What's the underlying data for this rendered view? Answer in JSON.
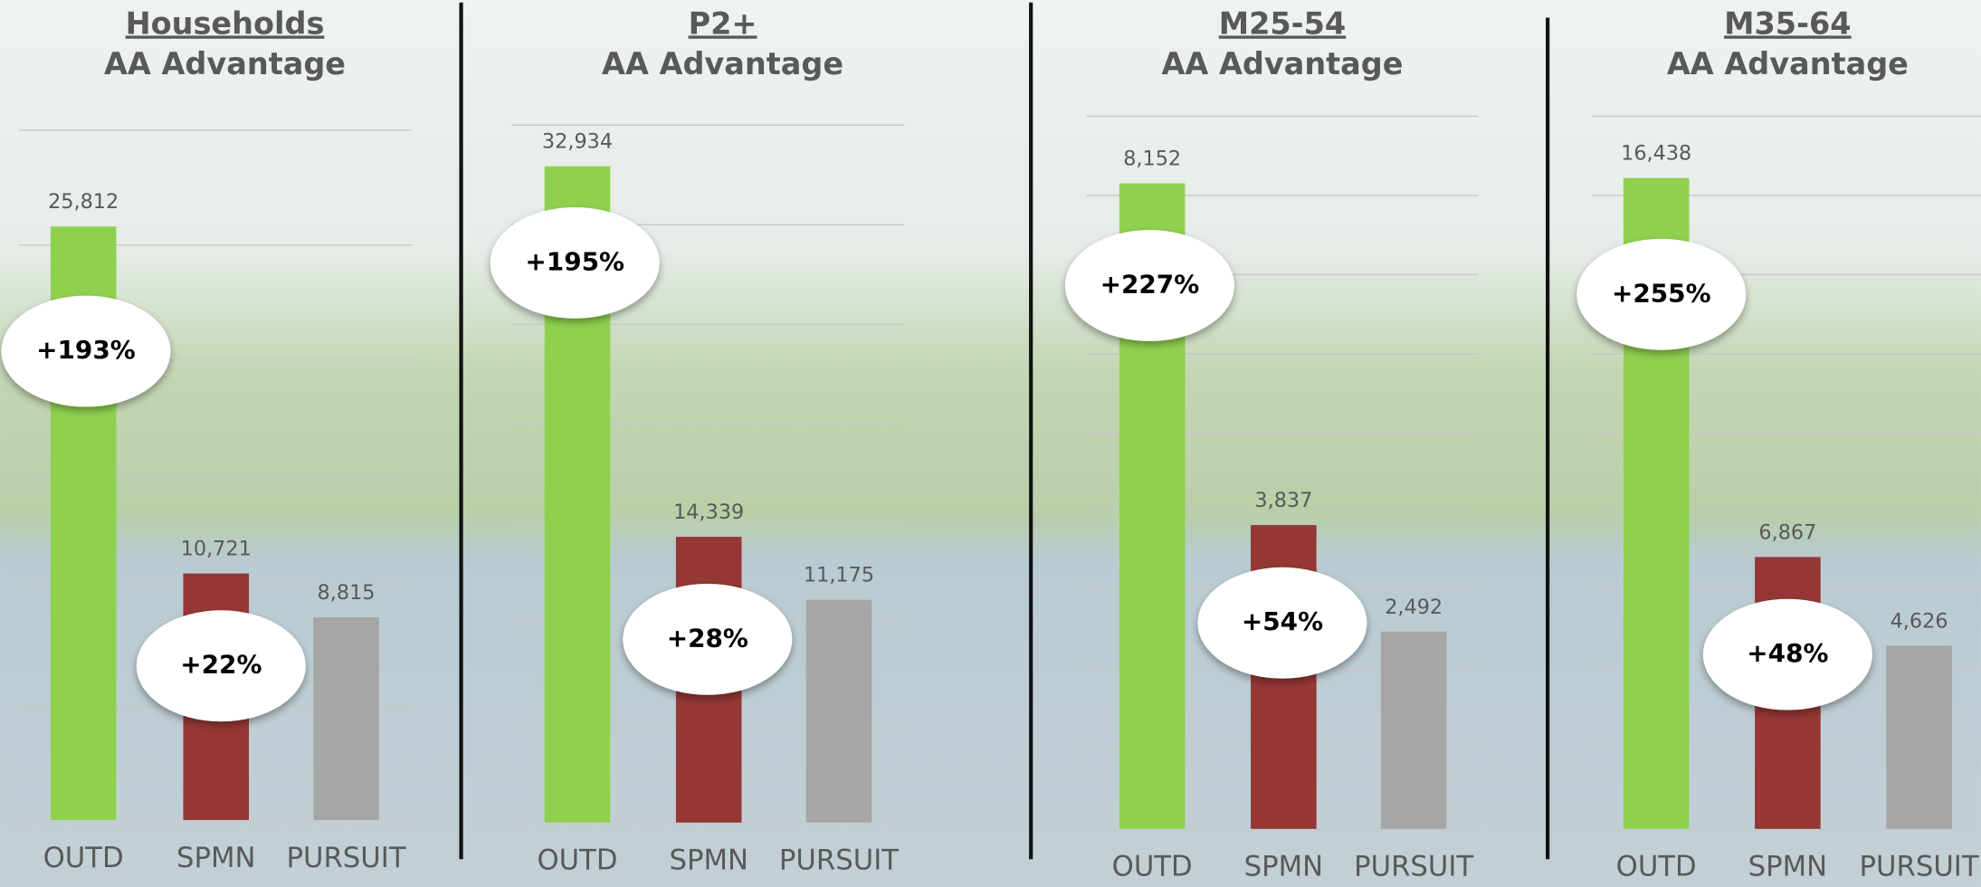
{
  "chart_data": [
    {
      "type": "bar",
      "title": "Households",
      "subtitle": "AA Advantage",
      "categories": [
        "OUTD",
        "SPMN",
        "PURSUIT"
      ],
      "values": [
        25812,
        10721,
        8815
      ],
      "value_labels": [
        "25,812",
        "10,721",
        "8,815"
      ],
      "colors": [
        "#8fd14f",
        "#953735",
        "#a6a6a6"
      ],
      "annotations": [
        "+193%",
        "+22%"
      ],
      "ylim": [
        0,
        30000
      ],
      "yticks": [
        0,
        5000,
        10000,
        15000,
        20000,
        25000,
        30000
      ],
      "grid": true
    },
    {
      "type": "bar",
      "title": "P2+",
      "subtitle": "AA Advantage",
      "categories": [
        "OUTD",
        "SPMN",
        "PURSUIT"
      ],
      "values": [
        32934,
        14339,
        11175
      ],
      "value_labels": [
        "32,934",
        "14,339",
        "11,175"
      ],
      "colors": [
        "#8fd14f",
        "#953735",
        "#a6a6a6"
      ],
      "annotations": [
        "+195%",
        "+28%"
      ],
      "ylim": [
        0,
        35000
      ],
      "yticks": [
        0,
        5000,
        10000,
        15000,
        20000,
        25000,
        30000,
        35000
      ],
      "grid": true
    },
    {
      "type": "bar",
      "title": "M25-54",
      "subtitle": "AA Advantage",
      "categories": [
        "OUTD",
        "SPMN",
        "PURSUIT"
      ],
      "values": [
        8152,
        3837,
        2492
      ],
      "value_labels": [
        "8,152",
        "3,837",
        "2,492"
      ],
      "colors": [
        "#8fd14f",
        "#953735",
        "#a6a6a6"
      ],
      "annotations": [
        "+227%",
        "+54%"
      ],
      "ylim": [
        0,
        9000
      ],
      "yticks": [
        0,
        1000,
        2000,
        3000,
        4000,
        5000,
        6000,
        7000,
        8000,
        9000
      ],
      "grid": true
    },
    {
      "type": "bar",
      "title": "M35-64",
      "subtitle": "AA Advantage",
      "categories": [
        "OUTD",
        "SPMN",
        "PURSUIT"
      ],
      "values": [
        16438,
        6867,
        4626
      ],
      "value_labels": [
        "16,438",
        "6,867",
        "4,626"
      ],
      "colors": [
        "#8fd14f",
        "#953735",
        "#a6a6a6"
      ],
      "annotations": [
        "+255%",
        "+48%"
      ],
      "ylim": [
        0,
        18000
      ],
      "yticks": [
        0,
        2000,
        4000,
        6000,
        8000,
        10000,
        12000,
        14000,
        16000,
        18000
      ],
      "grid": true
    }
  ]
}
